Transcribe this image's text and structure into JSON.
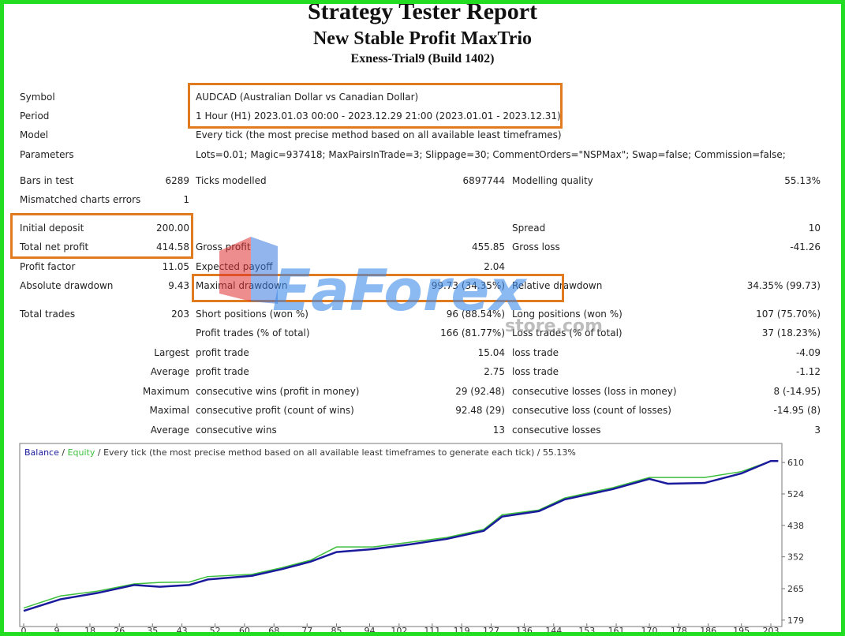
{
  "header": {
    "title": "Strategy Tester Report",
    "subtitle": "New Stable Profit MaxTrio",
    "server": "Exness-Trial9 (Build 1402)"
  },
  "table": {
    "rows": [
      [
        "Symbol",
        null,
        "AUDCAD (Australian Dollar vs Canadian Dollar)",
        null,
        null,
        null
      ],
      [
        "Period",
        null,
        "1 Hour (H1) 2023.01.03 00:00 - 2023.12.29 21:00 (2023.01.01 - 2023.12.31)",
        null,
        null,
        null
      ],
      [
        "Model",
        null,
        "Every tick (the most precise method based on all available least timeframes)",
        null,
        null,
        null
      ],
      [
        "Parameters",
        null,
        "Lots=0.01; Magic=937418; MaxPairsInTrade=3; Slippage=30; CommentOrders=\"NSPMax\"; Swap=false; Commission=false;",
        null,
        null,
        null
      ],
      [
        "Bars in test",
        "6289",
        "Ticks modelled",
        "6897744",
        "Modelling quality",
        "55.13%"
      ],
      [
        "Mismatched charts errors",
        "1",
        null,
        null,
        null,
        null
      ],
      [
        "Initial deposit",
        "200.00",
        null,
        null,
        "Spread",
        "10"
      ],
      [
        "Total net profit",
        "414.58",
        "Gross profit",
        "455.85",
        "Gross loss",
        "-41.26"
      ],
      [
        "Profit factor",
        "11.05",
        "Expected payoff",
        "2.04",
        null,
        null
      ],
      [
        "Absolute drawdown",
        "9.43",
        "Maximal drawdown",
        "99.73 (34.35%)",
        "Relative drawdown",
        "34.35% (99.73)"
      ],
      [
        "Total trades",
        "203",
        "Short positions (won %)",
        "96 (88.54%)",
        "Long positions (won %)",
        "107 (75.70%)"
      ],
      [
        null,
        null,
        "Profit trades (% of total)",
        "166 (81.77%)",
        "Loss trades (% of total)",
        "37 (18.23%)"
      ],
      [
        null,
        "Largest",
        "profit trade",
        "15.04",
        "loss trade",
        "-4.09"
      ],
      [
        null,
        "Average",
        "profit trade",
        "2.75",
        "loss trade",
        "-1.12"
      ],
      [
        null,
        "Maximum",
        "consecutive wins (profit in money)",
        "29 (92.48)",
        "consecutive losses (loss in money)",
        "8 (-14.95)"
      ],
      [
        null,
        "Maximal",
        "consecutive profit (count of wins)",
        "92.48 (29)",
        "consecutive loss (count of losses)",
        "-14.95 (8)"
      ],
      [
        null,
        "Average",
        "consecutive wins",
        "13",
        "consecutive losses",
        "3"
      ]
    ]
  },
  "watermark": {
    "brand": "EaForex",
    "site": "store.com"
  },
  "chart": {
    "type": "line",
    "separator": "/",
    "description": "/ Every tick (the most precise method based on all available least timeframes to generate each tick) / 55.13%",
    "xlim": [
      0,
      206
    ],
    "ylim": [
      170,
      662
    ],
    "xticks": [
      0,
      9,
      18,
      26,
      35,
      43,
      52,
      60,
      68,
      77,
      85,
      94,
      102,
      111,
      119,
      127,
      136,
      144,
      153,
      161,
      170,
      178,
      186,
      195,
      203
    ],
    "yticks": [
      179,
      265,
      352,
      438,
      524,
      610
    ],
    "x": [
      0,
      10,
      20,
      30,
      37,
      45,
      50,
      62,
      70,
      78,
      85,
      95,
      105,
      115,
      125,
      130,
      140,
      147,
      160,
      170,
      175,
      185,
      195,
      203,
      205
    ],
    "series": [
      {
        "name": "Balance",
        "color": "#1a1a9c",
        "values": [
          204,
          236,
          253,
          275,
          270,
          275,
          290,
          300,
          318,
          339,
          365,
          373,
          386,
          401,
          423,
          462,
          477,
          509,
          537,
          565,
          552,
          554,
          580,
          614,
          614
        ]
      },
      {
        "name": "Equity",
        "color": "#3cbf3c",
        "values": [
          212,
          245,
          258,
          278,
          282,
          283,
          298,
          304,
          322,
          343,
          379,
          379,
          392,
          405,
          427,
          467,
          480,
          513,
          541,
          569,
          569,
          569,
          585,
          614,
          614
        ]
      }
    ]
  }
}
